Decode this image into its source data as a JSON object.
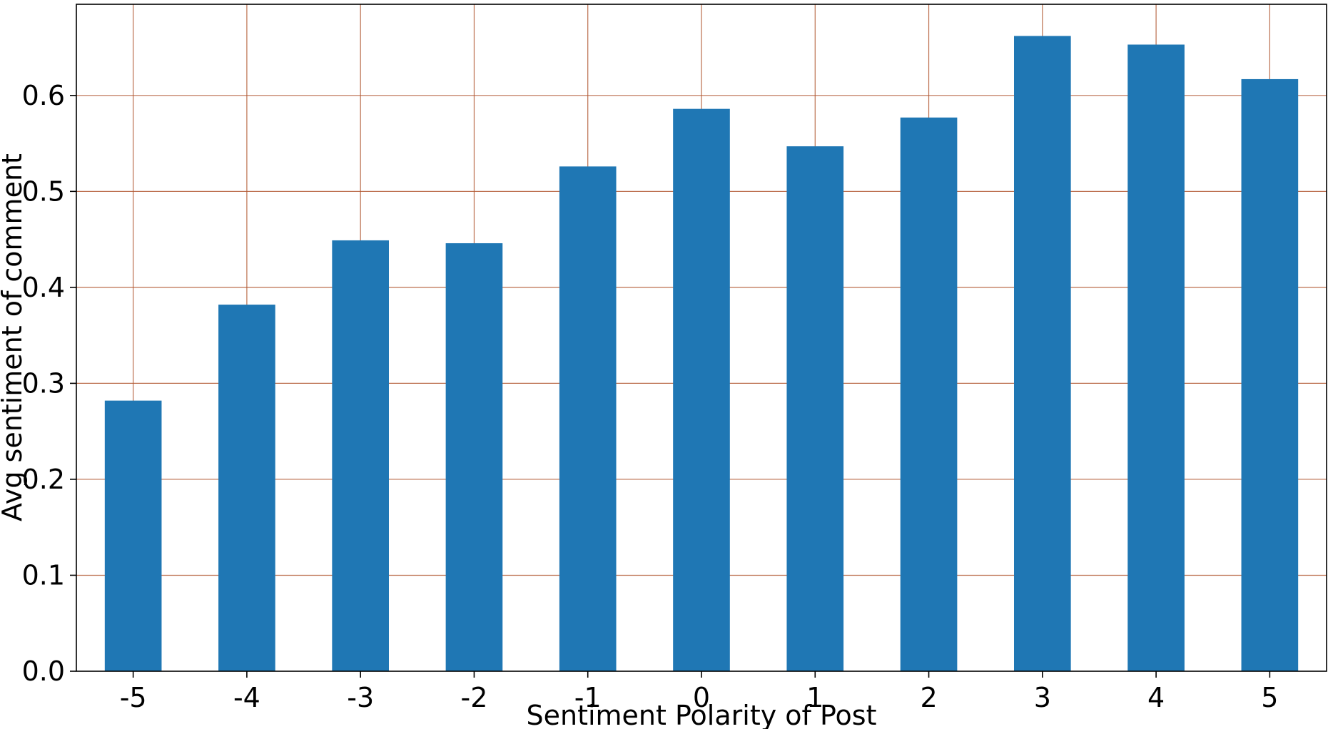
{
  "chart_data": {
    "type": "bar",
    "categories": [
      "-5",
      "-4",
      "-3",
      "-2",
      "-1",
      "0",
      "1",
      "2",
      "3",
      "4",
      "5"
    ],
    "values": [
      0.282,
      0.382,
      0.449,
      0.446,
      0.526,
      0.586,
      0.547,
      0.577,
      0.662,
      0.653,
      0.617
    ],
    "xlabel": "Sentiment Polarity of Post",
    "ylabel": "Avg sentiment of comment",
    "ylim": [
      0.0,
      0.695
    ],
    "yticks": [
      "0.0",
      "0.1",
      "0.2",
      "0.3",
      "0.4",
      "0.5",
      "0.6"
    ],
    "grid": true,
    "bar_color": "#1f77b4",
    "grid_color": "#b0562f"
  }
}
